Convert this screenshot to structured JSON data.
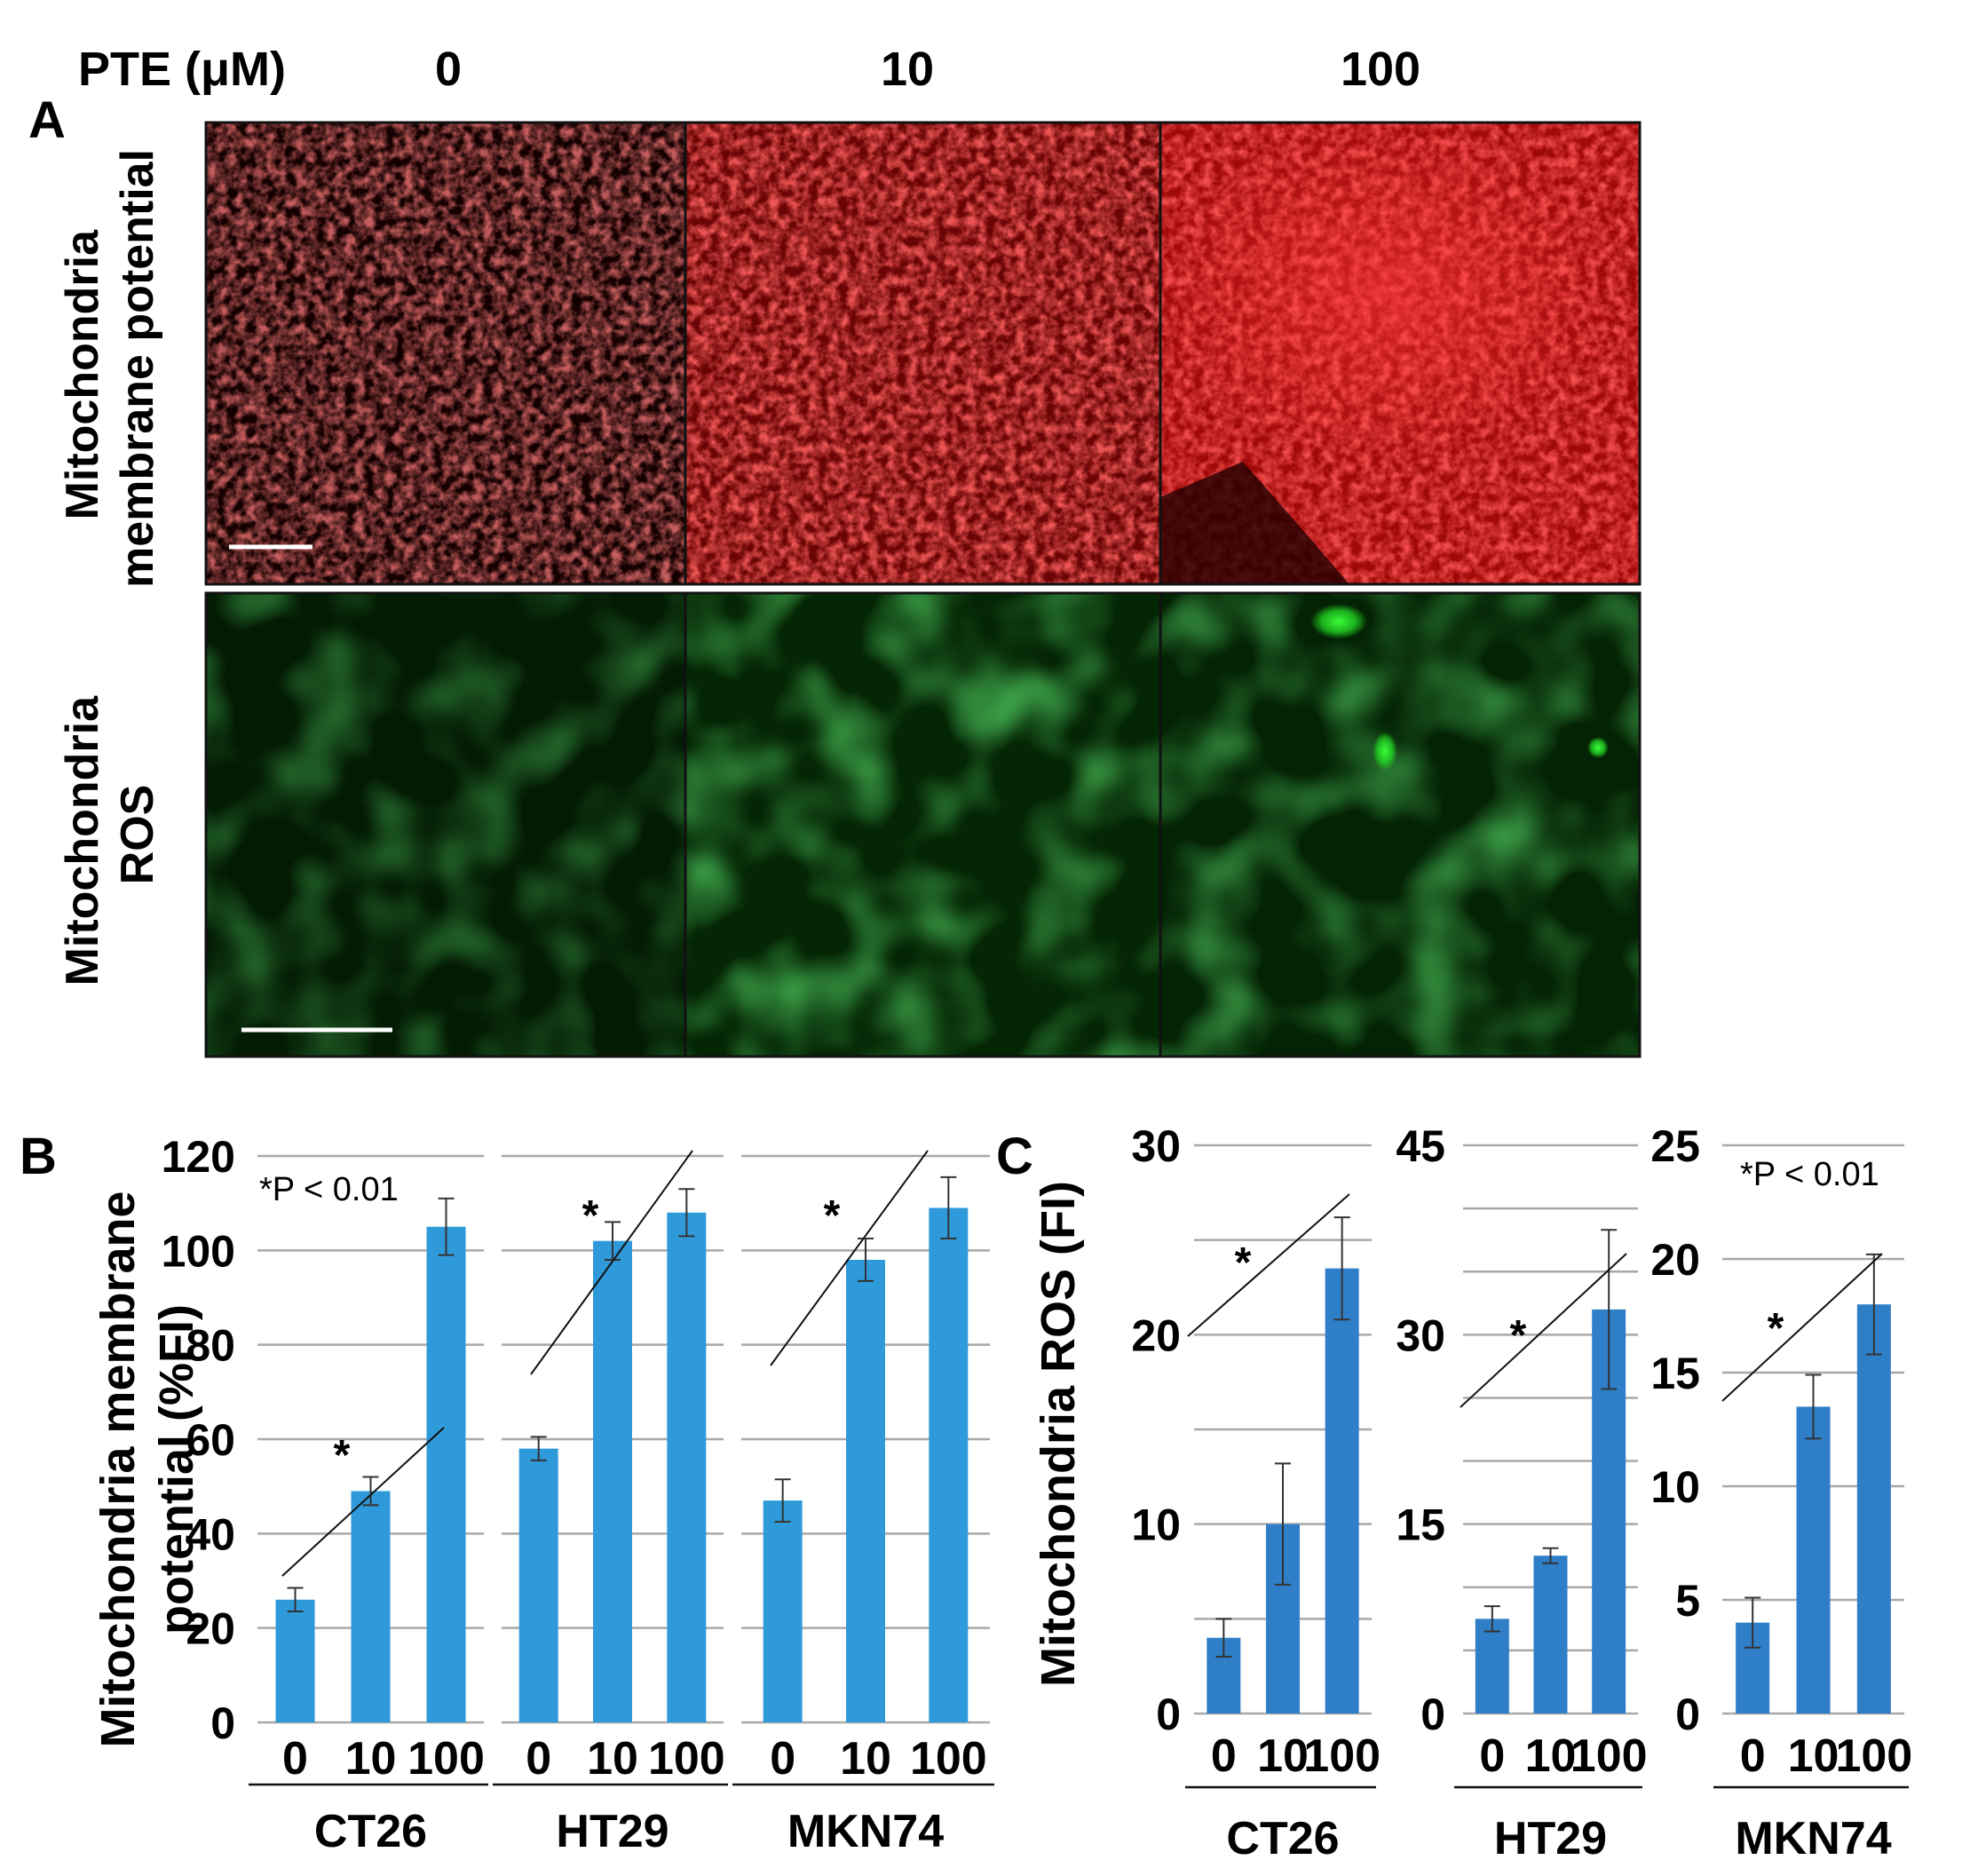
{
  "panel_a": {
    "panel_label": "A",
    "dose_label": "PTE (μM)",
    "doses": [
      "0",
      "10",
      "100"
    ],
    "row_labels": [
      [
        "Mitochondria",
        "membrane potential"
      ],
      [
        "Mitochondria",
        "ROS"
      ]
    ],
    "colors": {
      "red_stain": "#d81414",
      "green_stain": "#1fbf2a"
    }
  },
  "chart_data": [
    {
      "panel_label": "B",
      "type": "bar",
      "ylabel": [
        "Mitochondria membrane",
        "potential (%FI)"
      ],
      "annotation": "*P < 0.01",
      "color": "#2f9ad9",
      "grid": true,
      "groups": [
        {
          "name": "CT26",
          "categories": [
            "0",
            "10",
            "100"
          ],
          "values": [
            26,
            49,
            105
          ],
          "errors": [
            2.5,
            3,
            6
          ],
          "ylim": [
            0,
            120
          ],
          "yticks": [
            0,
            20,
            40,
            60,
            80,
            100,
            120
          ],
          "tick_side": "left",
          "star": "*"
        },
        {
          "name": "HT29",
          "categories": [
            "0",
            "10",
            "100"
          ],
          "values": [
            58,
            102,
            108
          ],
          "errors": [
            2.5,
            4,
            5
          ],
          "ylim": [
            0,
            120
          ],
          "yticks": [],
          "tick_side": "none",
          "star": "*"
        },
        {
          "name": "MKN74",
          "categories": [
            "0",
            "10",
            "100"
          ],
          "values": [
            47,
            98,
            109
          ],
          "errors": [
            4.5,
            4.5,
            6.5
          ],
          "ylim": [
            0,
            120
          ],
          "yticks": [],
          "tick_side": "none",
          "star": "*"
        }
      ]
    },
    {
      "panel_label": "C",
      "type": "bar",
      "ylabel": [
        "Mitochondria ROS (FI)"
      ],
      "annotation": "*P < 0.01",
      "color": "#2e7fc7",
      "grid": true,
      "groups": [
        {
          "name": "CT26",
          "categories": [
            "0",
            "10",
            "100"
          ],
          "values": [
            4,
            10,
            23.5
          ],
          "errors": [
            1,
            3.2,
            2.7
          ],
          "ylim": [
            0,
            30
          ],
          "yticks": [
            0,
            10,
            20,
            30
          ],
          "tick_side": "left",
          "gridlines": [
            0,
            5,
            10,
            15,
            20,
            25,
            30
          ],
          "star": "*"
        },
        {
          "name": "HT29",
          "categories": [
            "0",
            "10",
            "100"
          ],
          "values": [
            7.5,
            12.5,
            32
          ],
          "errors": [
            1,
            0.6,
            6.3
          ],
          "ylim": [
            0,
            45
          ],
          "yticks": [
            0,
            15,
            30,
            45
          ],
          "tick_side": "left",
          "gridlines": [
            0,
            5,
            10,
            15,
            20,
            25,
            30,
            35,
            40,
            45
          ],
          "star": "*"
        },
        {
          "name": "MKN74",
          "categories": [
            "0",
            "10",
            "100"
          ],
          "values": [
            4,
            13.5,
            18
          ],
          "errors": [
            1.1,
            1.4,
            2.2
          ],
          "ylim": [
            0,
            25
          ],
          "yticks": [
            0,
            5,
            10,
            15,
            20,
            25
          ],
          "tick_side": "left",
          "gridlines": [
            0,
            5,
            10,
            15,
            20,
            25
          ],
          "star": "*"
        }
      ]
    }
  ]
}
